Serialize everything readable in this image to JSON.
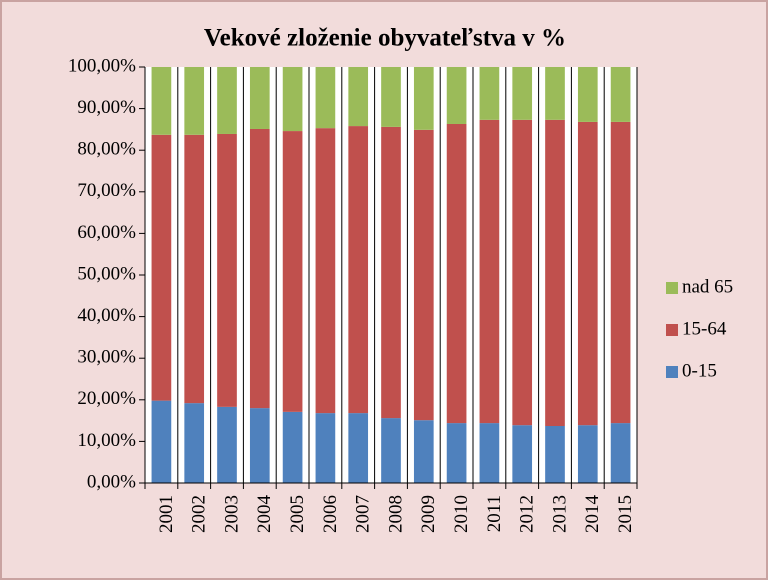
{
  "chart_data": {
    "type": "stacked_bar",
    "title": "Vekové zloženie obyvateľstva v %",
    "categories": [
      "2001",
      "2002",
      "2003",
      "2004",
      "2005",
      "2006",
      "2007",
      "2008",
      "2009",
      "2010",
      "2011",
      "2012",
      "2013",
      "2014",
      "2015"
    ],
    "series": [
      {
        "name": "0-15",
        "color": "#4f81bd",
        "values": [
          19.8,
          19.2,
          18.3,
          18.0,
          17.1,
          16.8,
          16.8,
          15.6,
          15.1,
          14.4,
          14.4,
          13.9,
          13.7,
          13.9,
          14.4
        ]
      },
      {
        "name": "15-64",
        "color": "#c0504d",
        "values": [
          63.9,
          64.5,
          65.6,
          67.1,
          67.5,
          68.5,
          69.0,
          70.0,
          69.8,
          71.9,
          72.9,
          73.4,
          73.6,
          72.9,
          72.4
        ]
      },
      {
        "name": "nad 65",
        "color": "#9bbb59",
        "values": [
          16.3,
          16.3,
          16.1,
          14.9,
          15.4,
          14.7,
          14.2,
          14.4,
          15.1,
          13.7,
          12.7,
          12.7,
          12.7,
          13.2,
          13.2
        ]
      }
    ],
    "ylim": [
      0,
      100
    ],
    "yticks": [
      {
        "value": 0,
        "label": "0,00%"
      },
      {
        "value": 10,
        "label": "10,00%"
      },
      {
        "value": 20,
        "label": "20,00%"
      },
      {
        "value": 30,
        "label": "30,00%"
      },
      {
        "value": 40,
        "label": "40,00%"
      },
      {
        "value": 50,
        "label": "50,00%"
      },
      {
        "value": 60,
        "label": "60,00%"
      },
      {
        "value": 70,
        "label": "70,00%"
      },
      {
        "value": 80,
        "label": "80,00%"
      },
      {
        "value": 90,
        "label": "90,00%"
      },
      {
        "value": 100,
        "label": "100,00%"
      }
    ],
    "legend": "right"
  }
}
